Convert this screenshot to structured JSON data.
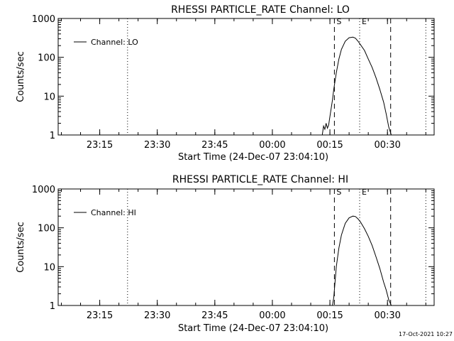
{
  "colors": {
    "background": "#ffffff",
    "foreground": "#000000"
  },
  "footer": {
    "timestamp": "17-Oct-2021 10:27"
  },
  "chart_data": [
    {
      "type": "line",
      "title": "RHESSI PARTICLE_RATE Channel: LO",
      "xlabel": "Start Time (24-Dec-07 23:04:10)",
      "ylabel": "Counts/sec",
      "yscale": "log",
      "ylim": [
        1,
        1000
      ],
      "xlim": [
        "23:04:10",
        "00:42:10"
      ],
      "x_tick_labels": [
        "23:15",
        "23:30",
        "23:45",
        "00:00",
        "00:15",
        "00:30"
      ],
      "y_tick_labels": [
        "1",
        "10",
        "100",
        "1000"
      ],
      "legend": {
        "position": "top-left",
        "entries": [
          "Channel: LO"
        ]
      },
      "series": [
        {
          "name": "Channel: LO",
          "x": [
            "00:13:00",
            "00:13:20",
            "00:13:40",
            "00:14:00",
            "00:14:20",
            "00:14:40",
            "00:15:00",
            "00:15:40",
            "00:16:00",
            "00:16:40",
            "00:17:20",
            "00:18:00",
            "00:19:00",
            "00:20:00",
            "00:21:00",
            "00:21:40",
            "00:22:20",
            "00:23:00",
            "00:24:00",
            "00:25:00",
            "00:26:00",
            "00:27:00",
            "00:28:00",
            "00:29:00",
            "00:29:40",
            "00:30:20",
            "00:31:00"
          ],
          "y": [
            1.0,
            1.7,
            1.4,
            2.0,
            1.5,
            1.8,
            3.0,
            8,
            15,
            40,
            90,
            160,
            260,
            320,
            330,
            310,
            260,
            210,
            150,
            90,
            55,
            30,
            15,
            7,
            3.5,
            1.6,
            1.0
          ]
        }
      ],
      "annotations": [
        {
          "label": "S",
          "x": "00:16:10",
          "style": "dashed"
        },
        {
          "label": "E",
          "x": "00:22:45",
          "style": "dotted"
        },
        {
          "label": "",
          "x": "00:30:50",
          "style": "dashed"
        },
        {
          "label": "",
          "x": "23:22:15",
          "style": "dotted"
        },
        {
          "label": "",
          "x": "00:40:00",
          "style": "dotted"
        }
      ]
    },
    {
      "type": "line",
      "title": "RHESSI PARTICLE_RATE Channel: HI",
      "xlabel": "Start Time (24-Dec-07 23:04:10)",
      "ylabel": "Counts/sec",
      "yscale": "log",
      "ylim": [
        1,
        1000
      ],
      "xlim": [
        "23:04:10",
        "00:42:10"
      ],
      "x_tick_labels": [
        "23:15",
        "23:30",
        "23:45",
        "00:00",
        "00:15",
        "00:30"
      ],
      "y_tick_labels": [
        "1",
        "10",
        "100",
        "1000"
      ],
      "legend": {
        "position": "top-left",
        "entries": [
          "Channel: HI"
        ]
      },
      "series": [
        {
          "name": "Channel: HI",
          "x": [
            "00:15:40",
            "00:16:00",
            "00:16:20",
            "00:16:40",
            "00:17:20",
            "00:18:00",
            "00:19:00",
            "00:20:00",
            "00:21:00",
            "00:21:40",
            "00:22:20",
            "00:23:00",
            "00:24:00",
            "00:25:00",
            "00:26:00",
            "00:27:00",
            "00:28:00",
            "00:29:00",
            "00:29:40",
            "00:30:20",
            "00:31:00"
          ],
          "y": [
            1.0,
            1.6,
            4,
            10,
            30,
            65,
            130,
            180,
            200,
            195,
            170,
            140,
            95,
            60,
            35,
            18,
            9,
            4,
            2.5,
            1.4,
            1.0
          ]
        }
      ],
      "annotations": [
        {
          "label": "S",
          "x": "00:16:10",
          "style": "dashed"
        },
        {
          "label": "E",
          "x": "00:22:45",
          "style": "dotted"
        },
        {
          "label": "",
          "x": "00:30:50",
          "style": "dashed"
        },
        {
          "label": "",
          "x": "23:22:15",
          "style": "dotted"
        },
        {
          "label": "",
          "x": "00:40:00",
          "style": "dotted"
        }
      ]
    }
  ]
}
